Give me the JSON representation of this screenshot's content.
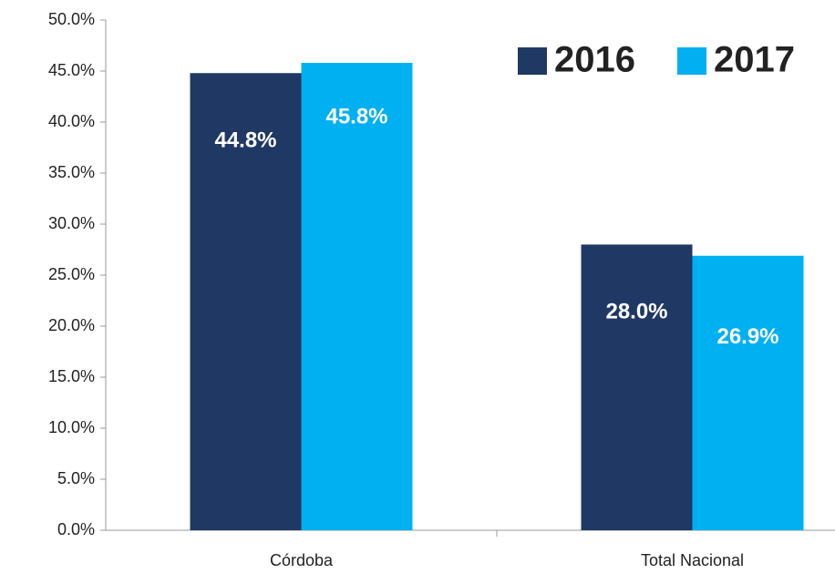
{
  "chart_data": {
    "type": "bar",
    "categories": [
      "Córdoba",
      "Total Nacional"
    ],
    "series": [
      {
        "name": "2016",
        "color": "#203864",
        "values": [
          44.8,
          28.0
        ],
        "value_labels": [
          "44.8%",
          "28.0%"
        ]
      },
      {
        "name": "2017",
        "color": "#00b0f0",
        "values": [
          45.8,
          26.9
        ],
        "value_labels": [
          "45.8%",
          "26.9%"
        ]
      }
    ],
    "ylim": [
      0,
      50
    ],
    "yticks": [
      {
        "value": 0,
        "label": "0.0%"
      },
      {
        "value": 5,
        "label": "5.0%"
      },
      {
        "value": 10,
        "label": "10.0%"
      },
      {
        "value": 15,
        "label": "15.0%"
      },
      {
        "value": 20,
        "label": "20.0%"
      },
      {
        "value": 25,
        "label": "25.0%"
      },
      {
        "value": 30,
        "label": "30.0%"
      },
      {
        "value": 35,
        "label": "35.0%"
      },
      {
        "value": 40,
        "label": "40.0%"
      },
      {
        "value": 45,
        "label": "45.0%"
      },
      {
        "value": 50,
        "label": "50.0%"
      }
    ],
    "grid": false,
    "legend": "upper right"
  }
}
